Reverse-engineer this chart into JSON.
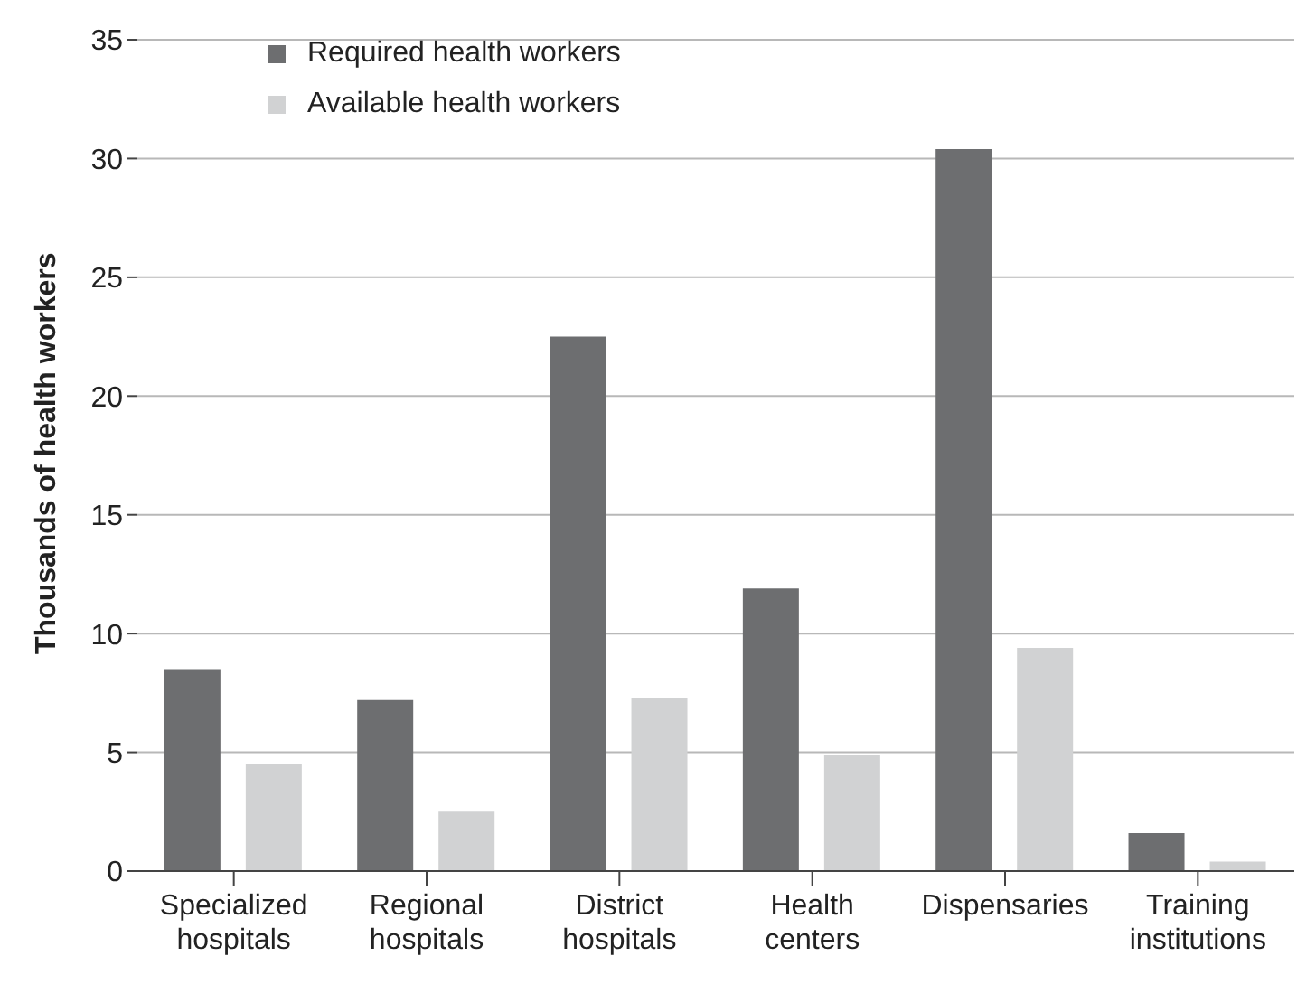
{
  "chart_data": {
    "type": "bar",
    "ylabel": "Thousands of health workers",
    "categories": [
      "Specialized hospitals",
      "Regional hospitals",
      "District hospitals",
      "Health centers",
      "Dispensaries",
      "Training institutions"
    ],
    "series": [
      {
        "name": "Required health workers",
        "color": "#6d6e70",
        "values": [
          8.5,
          7.2,
          22.5,
          11.9,
          30.4,
          1.6
        ]
      },
      {
        "name": "Available health workers",
        "color": "#d1d2d3",
        "values": [
          4.5,
          2.5,
          7.3,
          4.9,
          9.4,
          0.4
        ]
      }
    ],
    "ylim": [
      0,
      35
    ],
    "yticks": [
      0,
      5,
      10,
      15,
      20,
      25,
      30,
      35
    ],
    "grid": "y",
    "legend": "top left"
  }
}
